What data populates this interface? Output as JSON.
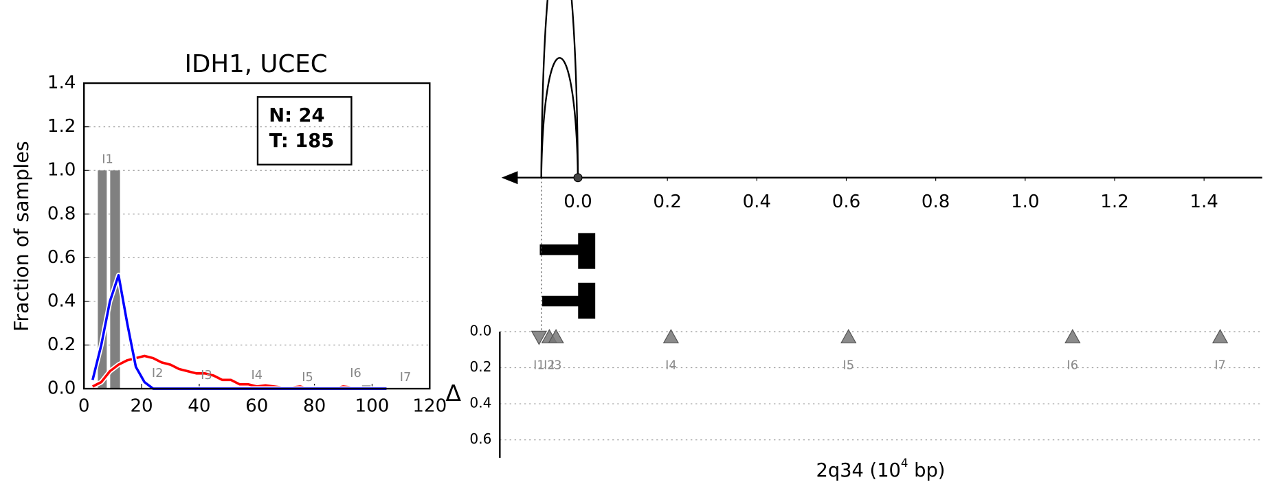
{
  "chart_data": [
    {
      "type": "line-hist",
      "title": "IDH1, UCEC",
      "ylabel": "Fraction of samples",
      "annotations": [
        "N: 24",
        "T: 185"
      ],
      "xlim": [
        0,
        120
      ],
      "xticks": [
        0,
        20,
        40,
        60,
        80,
        100,
        120
      ],
      "ylim": [
        0,
        1.4
      ],
      "yticks": [
        {
          "value": 0,
          "label": "0.0"
        },
        0.2,
        0.4,
        0.6,
        0.8,
        {
          "value": 1,
          "label": "1.0"
        },
        1.2,
        1.4
      ],
      "grid": true,
      "bars": {
        "x0": [
          4.8,
          9.1,
          26.5,
          96.5
        ],
        "x1": [
          7.9,
          12.5,
          29,
          99.5
        ],
        "values": [
          1.0,
          1.0,
          0.01,
          0.015
        ],
        "color": "#808080"
      },
      "x": [
        3,
        6,
        9,
        12,
        15,
        18,
        21,
        24,
        27,
        30,
        33,
        36,
        39,
        42,
        45,
        48,
        51,
        54,
        57,
        60,
        63,
        66,
        69,
        72,
        75,
        78,
        81,
        84,
        87,
        90,
        93,
        96,
        99,
        102,
        105
      ],
      "series": [
        {
          "color": "#ff0000",
          "values": [
            0.01,
            0.03,
            0.08,
            0.11,
            0.13,
            0.14,
            0.15,
            0.14,
            0.12,
            0.11,
            0.09,
            0.08,
            0.07,
            0.07,
            0.06,
            0.04,
            0.04,
            0.02,
            0.02,
            0.01,
            0.015,
            0.01,
            0.005,
            0.005,
            0.01,
            0,
            0.005,
            0.005,
            0,
            0.01,
            0.005,
            0,
            0,
            0,
            0
          ]
        },
        {
          "color": "#0000ff",
          "values": [
            0.04,
            0.2,
            0.4,
            0.52,
            0.3,
            0.1,
            0.03,
            0,
            0,
            0,
            0,
            0,
            0,
            0,
            0,
            0,
            0,
            0,
            0,
            0,
            0,
            0,
            0,
            0,
            0,
            0,
            0,
            0,
            0,
            0,
            0,
            0,
            0,
            0,
            0
          ]
        }
      ],
      "region_labels": {
        "labels": [
          "I1",
          "I2",
          "I3",
          "I4",
          "I5",
          "I6",
          "I7"
        ],
        "x": [
          8.2,
          25.5,
          42.5,
          60,
          77.6,
          94.3,
          111.6
        ],
        "y": [
          1.05,
          0.07,
          0.06,
          0.06,
          0.05,
          0.07,
          0.05
        ]
      }
    },
    {
      "type": "arc-delta",
      "xlim": [
        -0.171,
        1.53
      ],
      "xticks": [
        {
          "value": 0,
          "label": "0.0"
        },
        0.2,
        0.4,
        0.6,
        0.8,
        {
          "value": 1,
          "label": "1.0"
        },
        1.2,
        1.4
      ],
      "arcs": {
        "start": [
          -0.082,
          -0.082
        ],
        "end": [
          0,
          0
        ],
        "weight": [
          2,
          1
        ]
      },
      "ylabel": "Δ",
      "ylim": [
        0,
        0.7
      ],
      "yticks": [
        {
          "value": 0,
          "label": "0.0"
        },
        0.2,
        0.4,
        0.6
      ],
      "grid": true,
      "xlabel": {
        "base": "2q34 (10",
        "exp": "4",
        "unit": " bp)"
      },
      "points": {
        "labels": [
          "I1",
          "I2",
          "I3",
          "I4",
          "I5",
          "I6",
          "I7"
        ],
        "x": [
          -0.087,
          -0.064,
          -0.049,
          0.208,
          0.605,
          1.106,
          1.436
        ],
        "values": [
          0.03,
          0.03,
          0.03,
          0.03,
          0.03,
          0.03,
          0.03
        ],
        "markers": [
          "down",
          "up",
          "up",
          "up",
          "up",
          "up",
          "up"
        ],
        "color": "#777777"
      }
    }
  ]
}
